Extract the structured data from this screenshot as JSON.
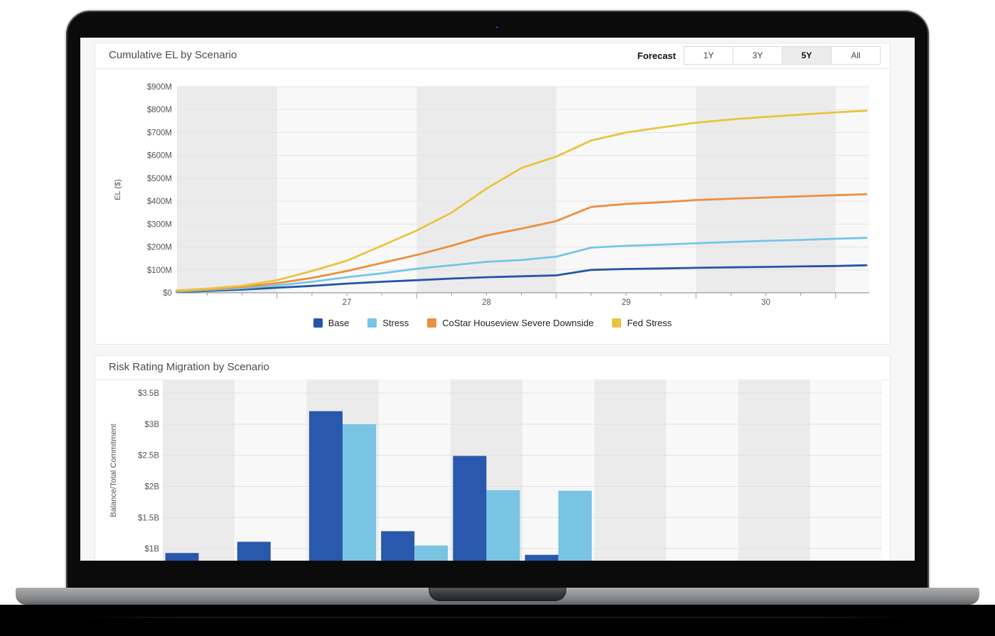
{
  "panel_cumulative_el": {
    "title": "Cumulative EL by Scenario",
    "forecast": {
      "label": "Forecast",
      "options": [
        {
          "label": "1Y",
          "active": false
        },
        {
          "label": "3Y",
          "active": false
        },
        {
          "label": "5Y",
          "active": true
        },
        {
          "label": "All",
          "active": false
        }
      ]
    }
  },
  "panel_risk_rating": {
    "title": "Risk Rating Migration by Scenario"
  },
  "chart_data": [
    {
      "type": "line",
      "title": "Cumulative EL by Scenario",
      "xlabel": "",
      "ylabel": "EL ($)",
      "ylim": [
        0,
        900
      ],
      "y_ticks": [
        0,
        100,
        200,
        300,
        400,
        500,
        600,
        700,
        800,
        900
      ],
      "y_tick_labels": [
        "$0",
        "$100M",
        "$200M",
        "$300M",
        "$400M",
        "$500M",
        "$600M",
        "$700M",
        "$800M",
        "$900M"
      ],
      "x_tick_years": [
        27,
        28,
        29,
        30
      ],
      "x_tick_labels": [
        "27",
        "28",
        "29",
        "30"
      ],
      "x_range": [
        25.78,
        30.72
      ],
      "grid": "horizontal",
      "background_bands": "alternating-year-shading",
      "legend_position": "bottom",
      "x": [
        25.78,
        26.0,
        26.25,
        26.5,
        26.75,
        27.0,
        27.25,
        27.5,
        27.75,
        28.0,
        28.25,
        28.5,
        28.75,
        29.0,
        29.25,
        29.5,
        29.75,
        30.0,
        30.25,
        30.5,
        30.72
      ],
      "series": [
        {
          "name": "Base",
          "color": "#2455a4",
          "values": [
            3,
            8,
            14,
            22,
            30,
            40,
            48,
            55,
            62,
            68,
            72,
            76,
            100,
            104,
            106,
            109,
            111,
            113,
            115,
            117,
            120
          ]
        },
        {
          "name": "Stress",
          "color": "#74c6e7",
          "values": [
            5,
            12,
            20,
            32,
            48,
            68,
            85,
            105,
            120,
            135,
            143,
            158,
            197,
            205,
            210,
            216,
            222,
            227,
            231,
            236,
            240
          ]
        },
        {
          "name": "CoStar Houseview Severe Downside",
          "color": "#ec8f3e",
          "values": [
            8,
            15,
            25,
            42,
            65,
            95,
            130,
            165,
            205,
            250,
            280,
            313,
            375,
            388,
            395,
            405,
            411,
            416,
            421,
            426,
            430
          ]
        },
        {
          "name": "Fed Stress",
          "color": "#e9c43f",
          "values": [
            10,
            18,
            30,
            55,
            95,
            140,
            205,
            272,
            350,
            455,
            545,
            595,
            665,
            700,
            722,
            743,
            757,
            768,
            778,
            788,
            795
          ]
        }
      ]
    },
    {
      "type": "bar",
      "title": "Risk Rating Migration by Scenario",
      "xlabel": "",
      "ylabel": "Balance/Total Commitment",
      "ylim": [
        0,
        3.5
      ],
      "y_ticks": [
        1,
        1.5,
        2,
        2.5,
        3,
        3.5
      ],
      "y_tick_labels": [
        "$1B",
        "$1.5B",
        "$2B",
        "$2.5B",
        "$3B",
        "$3.5B"
      ],
      "groups": 10,
      "x_tick_labels": [],
      "grid": "horizontal",
      "background_bands": "alternating-category-shading",
      "series": [
        {
          "name": "Base",
          "color": "#2958ac",
          "values": [
            0.93,
            1.11,
            3.21,
            1.28,
            2.49,
            0.9,
            null,
            null,
            null,
            null
          ]
        },
        {
          "name": "Stress",
          "color": "#79c3e3",
          "values": [
            null,
            null,
            3.0,
            1.05,
            1.94,
            1.93,
            null,
            null,
            null,
            null
          ]
        }
      ]
    }
  ]
}
